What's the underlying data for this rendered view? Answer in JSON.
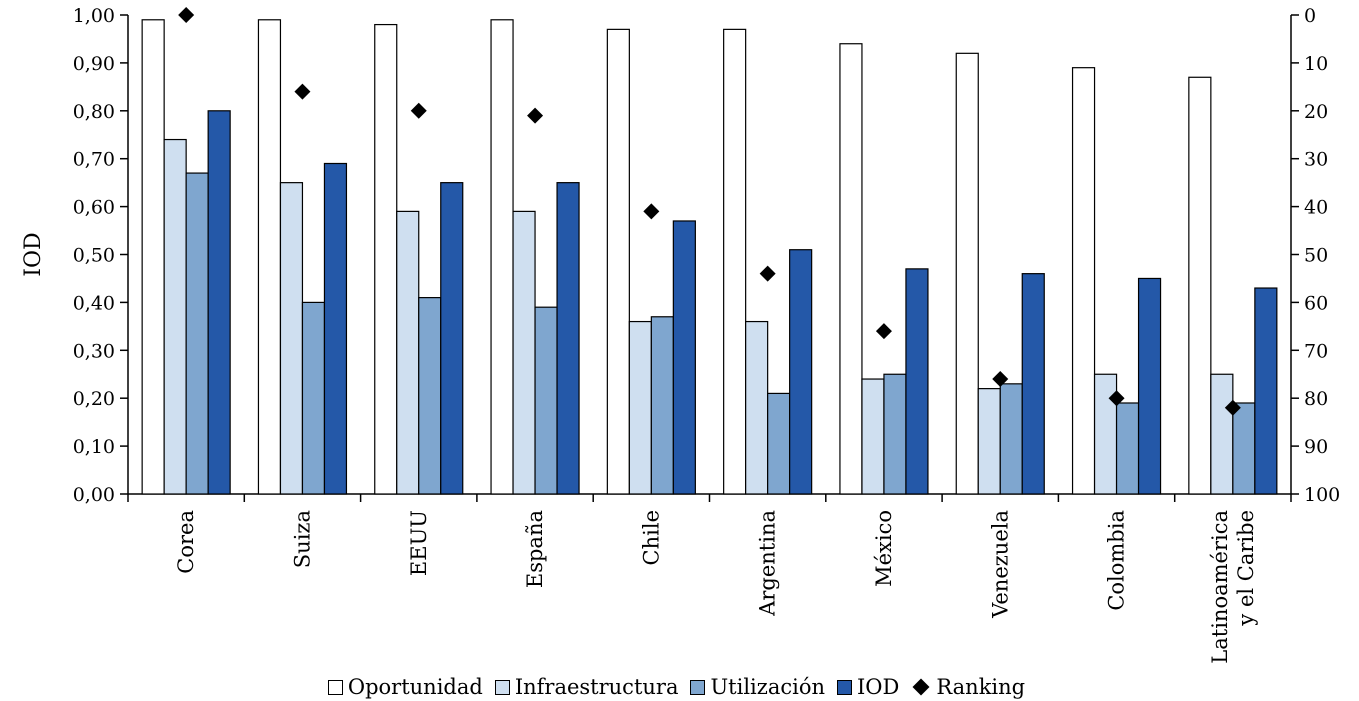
{
  "chart_data": {
    "type": "bar",
    "title": "",
    "xlabel": "",
    "ylabel": "IOD",
    "ylim": [
      0,
      1
    ],
    "y_ticks": [
      "0,00",
      "0,10",
      "0,20",
      "0,30",
      "0,40",
      "0,50",
      "0,60",
      "0,70",
      "0,80",
      "0,90",
      "1,00"
    ],
    "y2lim": [
      100,
      0
    ],
    "y2_ticks": [
      "0",
      "10",
      "20",
      "30",
      "40",
      "50",
      "60",
      "70",
      "80",
      "90",
      "100"
    ],
    "categories": [
      [
        "Corea"
      ],
      [
        "Suiza"
      ],
      [
        "EEUU"
      ],
      [
        "España"
      ],
      [
        "Chile"
      ],
      [
        "Argentina"
      ],
      [
        "México"
      ],
      [
        "Venezuela"
      ],
      [
        "Colombia"
      ],
      [
        "Latinoamérica",
        "y el Caribe"
      ]
    ],
    "series": [
      {
        "name": "Oportunidad",
        "color": "#ffffff",
        "values": [
          0.99,
          0.99,
          0.98,
          0.99,
          0.97,
          0.97,
          0.94,
          0.92,
          0.89,
          0.87
        ]
      },
      {
        "name": "Infraestructura",
        "color": "#cfdff0",
        "values": [
          0.74,
          0.65,
          0.59,
          0.59,
          0.36,
          0.36,
          0.24,
          0.22,
          0.25,
          0.25
        ]
      },
      {
        "name": "Utilización",
        "color": "#7fa6cf",
        "values": [
          0.67,
          0.4,
          0.41,
          0.39,
          0.37,
          0.21,
          0.25,
          0.23,
          0.19,
          0.19
        ]
      },
      {
        "name": "IOD",
        "color": "#2458a8",
        "values": [
          0.8,
          0.69,
          0.65,
          0.65,
          0.57,
          0.51,
          0.47,
          0.46,
          0.45,
          0.43
        ]
      }
    ],
    "ranking": {
      "name": "Ranking",
      "axis": "right",
      "values": [
        0,
        16,
        20,
        21,
        41,
        54,
        66,
        76,
        80,
        82
      ]
    },
    "grid": false,
    "legend_position": "bottom"
  }
}
